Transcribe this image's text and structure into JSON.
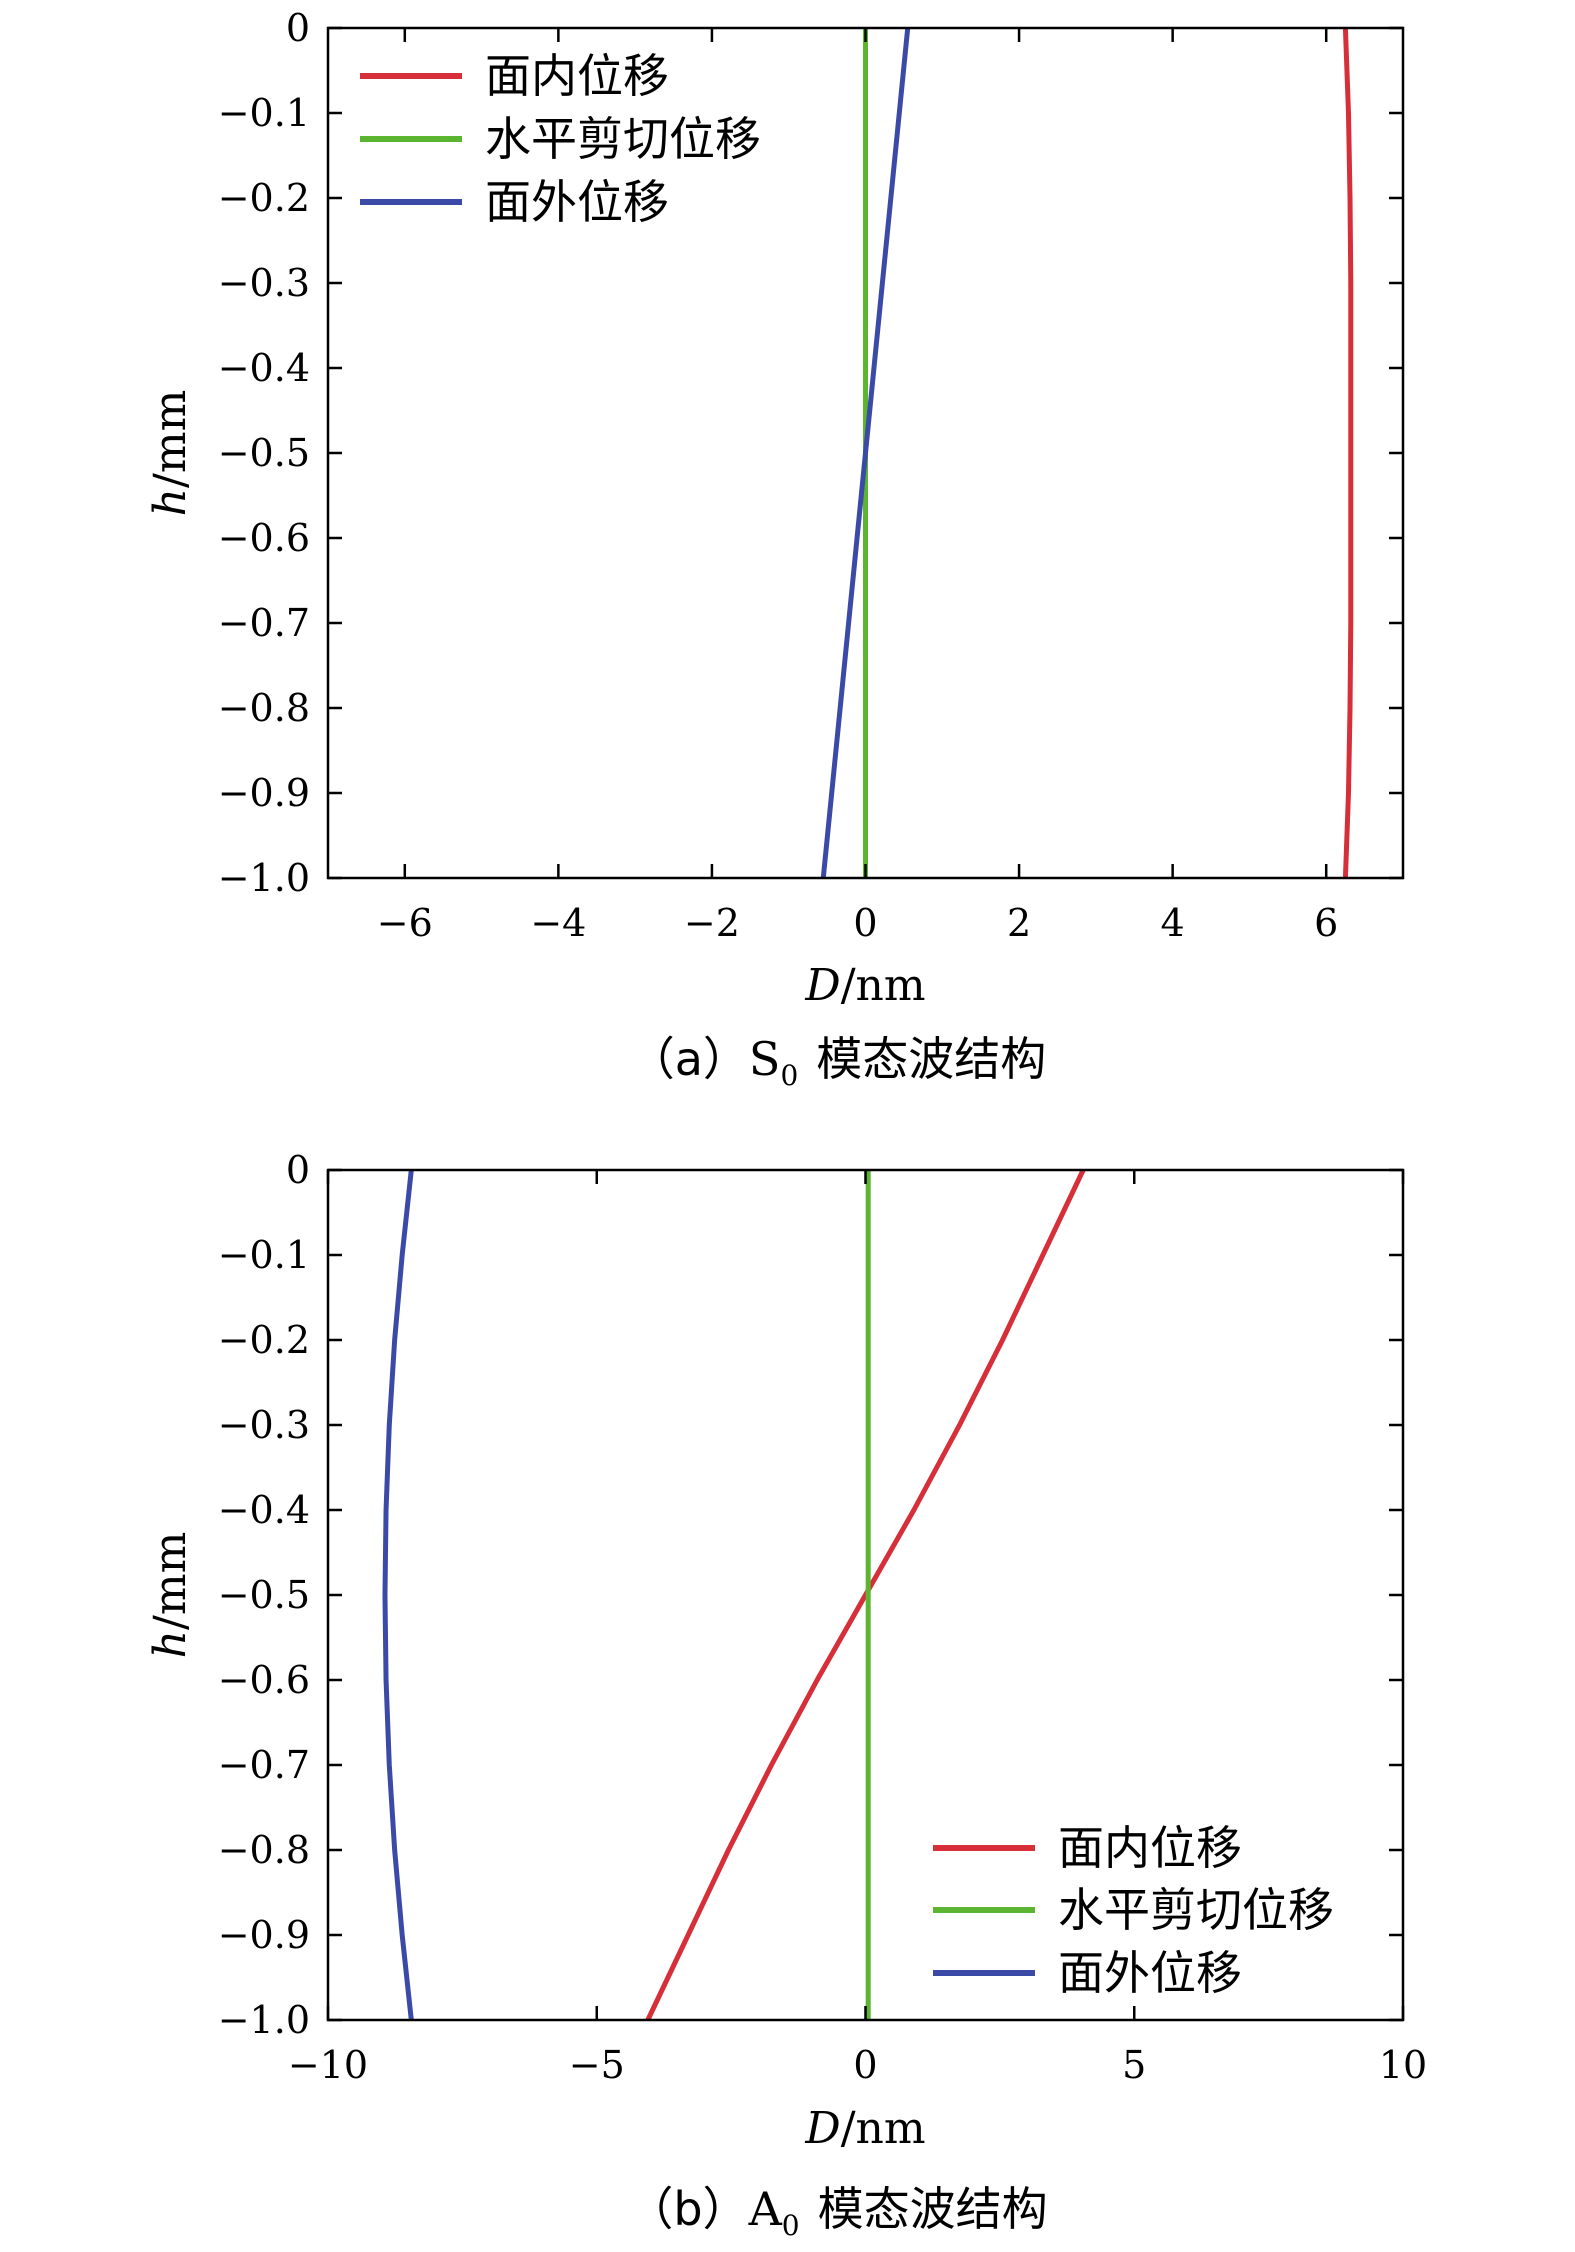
{
  "chart_data": [
    {
      "type": "line",
      "panel": "a",
      "caption_prefix": "（a）",
      "caption_letter": "S",
      "caption_sub": "0",
      "caption_suffix": "模态波结构",
      "xlabel_var": "D",
      "xlabel_unit": "/nm",
      "ylabel_var": "h",
      "ylabel_unit": "/mm",
      "xlim": [
        -7,
        7
      ],
      "ylim": [
        -1.0,
        0
      ],
      "xticks": [
        -6,
        -4,
        -2,
        0,
        2,
        4,
        6
      ],
      "xtick_labels": [
        "−6",
        "−4",
        "−2",
        "0",
        "2",
        "4",
        "6"
      ],
      "yticks": [
        0,
        -0.1,
        -0.2,
        -0.3,
        -0.4,
        -0.5,
        -0.6,
        -0.7,
        -0.8,
        -0.9,
        -1.0
      ],
      "ytick_labels": [
        "0",
        "−0.1",
        "−0.2",
        "−0.3",
        "−0.4",
        "−0.5",
        "−0.6",
        "−0.7",
        "−0.8",
        "−0.9",
        "−1.0"
      ],
      "legend_position": "top-left",
      "series": [
        {
          "name": "面内位移",
          "color": "#d62f3a",
          "points": [
            [
              6.25,
              0
            ],
            [
              6.29,
              -0.1
            ],
            [
              6.31,
              -0.2
            ],
            [
              6.32,
              -0.3
            ],
            [
              6.32,
              -0.4
            ],
            [
              6.32,
              -0.5
            ],
            [
              6.32,
              -0.6
            ],
            [
              6.32,
              -0.7
            ],
            [
              6.31,
              -0.8
            ],
            [
              6.29,
              -0.9
            ],
            [
              6.25,
              -1.0
            ]
          ]
        },
        {
          "name": "水平剪切位移",
          "color": "#5cb531",
          "points": [
            [
              0,
              0
            ],
            [
              0,
              -1.0
            ]
          ]
        },
        {
          "name": "面外位移",
          "color": "#3a4aa6",
          "points": [
            [
              0.55,
              0
            ],
            [
              0.44,
              -0.1
            ],
            [
              0.33,
              -0.2
            ],
            [
              0.22,
              -0.3
            ],
            [
              0.11,
              -0.4
            ],
            [
              0,
              -0.5
            ],
            [
              -0.11,
              -0.6
            ],
            [
              -0.22,
              -0.7
            ],
            [
              -0.33,
              -0.8
            ],
            [
              -0.44,
              -0.9
            ],
            [
              -0.55,
              -1.0
            ]
          ]
        }
      ]
    },
    {
      "type": "line",
      "panel": "b",
      "caption_prefix": "（b）",
      "caption_letter": "A",
      "caption_sub": "0",
      "caption_suffix": "模态波结构",
      "xlabel_var": "D",
      "xlabel_unit": "/nm",
      "ylabel_var": "h",
      "ylabel_unit": "/mm",
      "xlim": [
        -10,
        10
      ],
      "ylim": [
        -1.0,
        0
      ],
      "xticks": [
        -10,
        -5,
        0,
        5,
        10
      ],
      "xtick_labels": [
        "−10",
        "−5",
        "0",
        "5",
        "10"
      ],
      "yticks": [
        0,
        -0.1,
        -0.2,
        -0.3,
        -0.4,
        -0.5,
        -0.6,
        -0.7,
        -0.8,
        -0.9,
        -1.0
      ],
      "ytick_labels": [
        "0",
        "−0.1",
        "−0.2",
        "−0.3",
        "−0.4",
        "−0.5",
        "−0.6",
        "−0.7",
        "−0.8",
        "−0.9",
        "−1.0"
      ],
      "legend_position": "bottom-right",
      "series": [
        {
          "name": "面内位移",
          "color": "#d62f3a",
          "points": [
            [
              4.05,
              0
            ],
            [
              3.3,
              -0.1
            ],
            [
              2.55,
              -0.2
            ],
            [
              1.75,
              -0.3
            ],
            [
              0.9,
              -0.4
            ],
            [
              0,
              -0.5
            ],
            [
              -0.9,
              -0.6
            ],
            [
              -1.75,
              -0.7
            ],
            [
              -2.55,
              -0.8
            ],
            [
              -3.3,
              -0.9
            ],
            [
              -4.05,
              -1.0
            ]
          ]
        },
        {
          "name": "水平剪切位移",
          "color": "#5cb531",
          "points": [
            [
              0.05,
              0
            ],
            [
              0.05,
              -1.0
            ]
          ]
        },
        {
          "name": "面外位移",
          "color": "#3a4aa6",
          "points": [
            [
              -8.45,
              0
            ],
            [
              -8.62,
              -0.1
            ],
            [
              -8.76,
              -0.2
            ],
            [
              -8.86,
              -0.3
            ],
            [
              -8.92,
              -0.4
            ],
            [
              -8.94,
              -0.5
            ],
            [
              -8.92,
              -0.6
            ],
            [
              -8.86,
              -0.7
            ],
            [
              -8.76,
              -0.8
            ],
            [
              -8.62,
              -0.9
            ],
            [
              -8.45,
              -1.0
            ]
          ]
        }
      ]
    }
  ]
}
